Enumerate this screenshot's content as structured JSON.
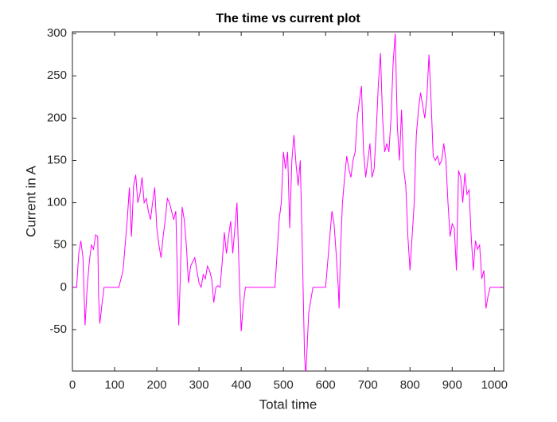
{
  "chart_data": {
    "type": "line",
    "title": "The time vs current plot",
    "x_label": "Total time",
    "y_label": "Current in A",
    "x": [
      0,
      10,
      15,
      20,
      25,
      30,
      35,
      40,
      45,
      50,
      55,
      60,
      62,
      65,
      70,
      75,
      110,
      120,
      130,
      135,
      140,
      145,
      150,
      155,
      160,
      165,
      170,
      175,
      180,
      185,
      190,
      195,
      200,
      205,
      210,
      215,
      220,
      225,
      230,
      235,
      240,
      245,
      250,
      252,
      255,
      260,
      265,
      270,
      275,
      280,
      290,
      295,
      300,
      305,
      310,
      315,
      320,
      325,
      330,
      335,
      340,
      345,
      350,
      355,
      360,
      365,
      370,
      375,
      380,
      385,
      390,
      395,
      400,
      405,
      410,
      480,
      490,
      495,
      500,
      505,
      510,
      515,
      520,
      525,
      530,
      535,
      540,
      545,
      550,
      553,
      560,
      570,
      600,
      610,
      615,
      620,
      625,
      630,
      632,
      635,
      640,
      645,
      650,
      655,
      660,
      665,
      670,
      675,
      680,
      685,
      690,
      695,
      700,
      705,
      710,
      715,
      720,
      725,
      730,
      735,
      740,
      745,
      750,
      755,
      760,
      765,
      770,
      775,
      780,
      785,
      790,
      795,
      800,
      805,
      810,
      815,
      820,
      825,
      830,
      835,
      840,
      845,
      850,
      855,
      860,
      865,
      870,
      875,
      880,
      885,
      890,
      895,
      900,
      905,
      910,
      915,
      920,
      925,
      930,
      935,
      940,
      945,
      950,
      955,
      960,
      965,
      970,
      975,
      980,
      985,
      990,
      1022
    ],
    "series": [
      {
        "name": "Current",
        "color": "#ff00ff",
        "values": [
          0,
          0,
          40,
          55,
          35,
          -45,
          0,
          30,
          50,
          45,
          62,
          60,
          -10,
          -43,
          -20,
          0,
          0,
          20,
          80,
          118,
          60,
          120,
          133,
          100,
          110,
          130,
          100,
          105,
          90,
          80,
          100,
          118,
          70,
          50,
          35,
          60,
          80,
          105,
          100,
          90,
          80,
          90,
          -10,
          -45,
          0,
          95,
          80,
          50,
          5,
          25,
          35,
          20,
          5,
          0,
          15,
          10,
          25,
          20,
          10,
          -18,
          0,
          2,
          0,
          30,
          65,
          40,
          60,
          78,
          40,
          70,
          100,
          20,
          -52,
          -20,
          0,
          0,
          80,
          100,
          160,
          140,
          160,
          70,
          150,
          180,
          145,
          120,
          150,
          40,
          -80,
          -105,
          -30,
          0,
          0,
          60,
          90,
          75,
          40,
          0,
          -25,
          40,
          100,
          130,
          155,
          140,
          130,
          150,
          160,
          200,
          220,
          238,
          160,
          130,
          150,
          170,
          130,
          140,
          185,
          240,
          277,
          200,
          160,
          170,
          160,
          200,
          265,
          300,
          190,
          150,
          210,
          140,
          120,
          60,
          20,
          60,
          100,
          180,
          210,
          230,
          215,
          200,
          225,
          275,
          220,
          155,
          150,
          155,
          145,
          150,
          170,
          150,
          100,
          60,
          75,
          70,
          20,
          138,
          130,
          100,
          135,
          110,
          115,
          60,
          20,
          55,
          45,
          50,
          10,
          20,
          -25,
          -10,
          0,
          0
        ]
      }
    ],
    "xlim": [
      0,
      1022
    ],
    "ylim": [
      -99,
      302
    ],
    "xticks": [
      0,
      100,
      200,
      300,
      400,
      500,
      600,
      700,
      800,
      900,
      1000
    ],
    "yticks": [
      -50,
      0,
      50,
      100,
      150,
      200,
      250,
      300
    ]
  }
}
